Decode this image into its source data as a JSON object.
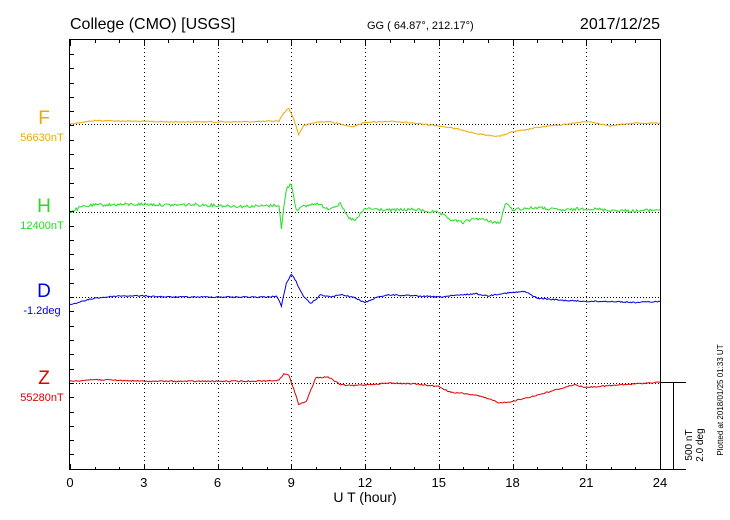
{
  "header": {
    "station": "College (CMO)  [USGS]",
    "coords": "GG ( 64.87°, 212.17°)",
    "date": "2017/12/25"
  },
  "axis": {
    "xlabel": "U T (hour)",
    "scale_nt": "500 nT",
    "scale_deg": "2.0 deg",
    "plotted": "Plotted at 2018/01/25 01:33 UT"
  },
  "chart_data": {
    "type": "line",
    "xlabel": "U T (hour)",
    "xlim": [
      0,
      24
    ],
    "xticks": [
      0,
      3,
      6,
      9,
      12,
      15,
      18,
      21,
      24
    ],
    "xtick_labels": [
      "0",
      "3",
      "6",
      "9",
      "12",
      "15",
      "18",
      "21",
      "24"
    ],
    "grid": true,
    "series": [
      {
        "name": "F",
        "baseline_label": "56630nT",
        "color": "#f0a800",
        "x": [
          0,
          1,
          2,
          3,
          4,
          5,
          6,
          7,
          8,
          8.5,
          8.7,
          8.9,
          9.1,
          9.3,
          9.5,
          10,
          10.5,
          11,
          11.5,
          12,
          13,
          14,
          15,
          16,
          16.5,
          17,
          17.5,
          18,
          18.5,
          19,
          20,
          21,
          22,
          23,
          24
        ],
        "y": [
          0,
          40,
          35,
          30,
          25,
          25,
          25,
          25,
          30,
          35,
          130,
          180,
          60,
          -120,
          -20,
          20,
          30,
          0,
          -30,
          20,
          30,
          10,
          -20,
          -70,
          -110,
          -130,
          -140,
          -90,
          -70,
          -40,
          -10,
          30,
          -20,
          10,
          10
        ]
      },
      {
        "name": "H",
        "baseline_label": "12400nT",
        "color": "#22dd22",
        "x": [
          0,
          0.5,
          1,
          2,
          3,
          4,
          5,
          6,
          7,
          8,
          8.5,
          8.6,
          8.7,
          8.8,
          9,
          9.2,
          9.5,
          10,
          10.5,
          11,
          11.3,
          11.6,
          12,
          13,
          14,
          15,
          15.5,
          16,
          16.5,
          17,
          17.5,
          17.7,
          18,
          19,
          20,
          21,
          22,
          23,
          24
        ],
        "y": [
          0,
          60,
          80,
          85,
          90,
          80,
          85,
          75,
          65,
          70,
          80,
          -200,
          60,
          260,
          330,
          30,
          60,
          100,
          40,
          90,
          -60,
          -100,
          40,
          20,
          30,
          -10,
          -90,
          -120,
          -70,
          -100,
          -130,
          100,
          30,
          50,
          20,
          40,
          20,
          10,
          30
        ]
      },
      {
        "name": "D",
        "baseline_label": "-1.2deg",
        "color": "#0000dd",
        "x": [
          0,
          1,
          2,
          3,
          4,
          5,
          6,
          7,
          8,
          8.4,
          8.6,
          8.8,
          9,
          9.2,
          9.5,
          9.8,
          10.2,
          10.6,
          11,
          11.5,
          12,
          12.5,
          13,
          14,
          15,
          16,
          16.5,
          17,
          17.5,
          18,
          18.5,
          19,
          20,
          21,
          22,
          23,
          24
        ],
        "y": [
          -0.35,
          -0.05,
          0.05,
          0.05,
          0.0,
          0.0,
          0.0,
          0.0,
          0.0,
          0.05,
          -0.4,
          0.6,
          1.05,
          0.7,
          0.0,
          -0.3,
          0.1,
          0.0,
          0.1,
          0.0,
          -0.25,
          0.0,
          0.1,
          0.05,
          0.0,
          0.1,
          0.15,
          0.05,
          0.15,
          0.2,
          0.25,
          -0.05,
          -0.15,
          -0.2,
          -0.2,
          -0.25,
          -0.2
        ]
      },
      {
        "name": "Z",
        "baseline_label": "55280nT",
        "color": "#dd0000",
        "x": [
          0,
          1,
          2,
          3,
          4,
          5,
          6,
          7,
          8,
          8.5,
          8.7,
          8.9,
          9.1,
          9.3,
          9.6,
          10,
          10.5,
          11,
          11.5,
          12,
          13,
          14,
          15,
          15.5,
          16,
          16.5,
          17,
          17.5,
          18,
          19,
          20,
          20.5,
          21,
          22,
          23,
          24
        ],
        "y": [
          20,
          40,
          30,
          20,
          20,
          20,
          20,
          20,
          25,
          30,
          110,
          90,
          -70,
          -240,
          -220,
          60,
          70,
          -20,
          -30,
          -20,
          0,
          -10,
          -40,
          -110,
          -120,
          -140,
          -180,
          -230,
          -210,
          -140,
          -60,
          -20,
          -50,
          -30,
          -10,
          10
        ]
      }
    ]
  }
}
